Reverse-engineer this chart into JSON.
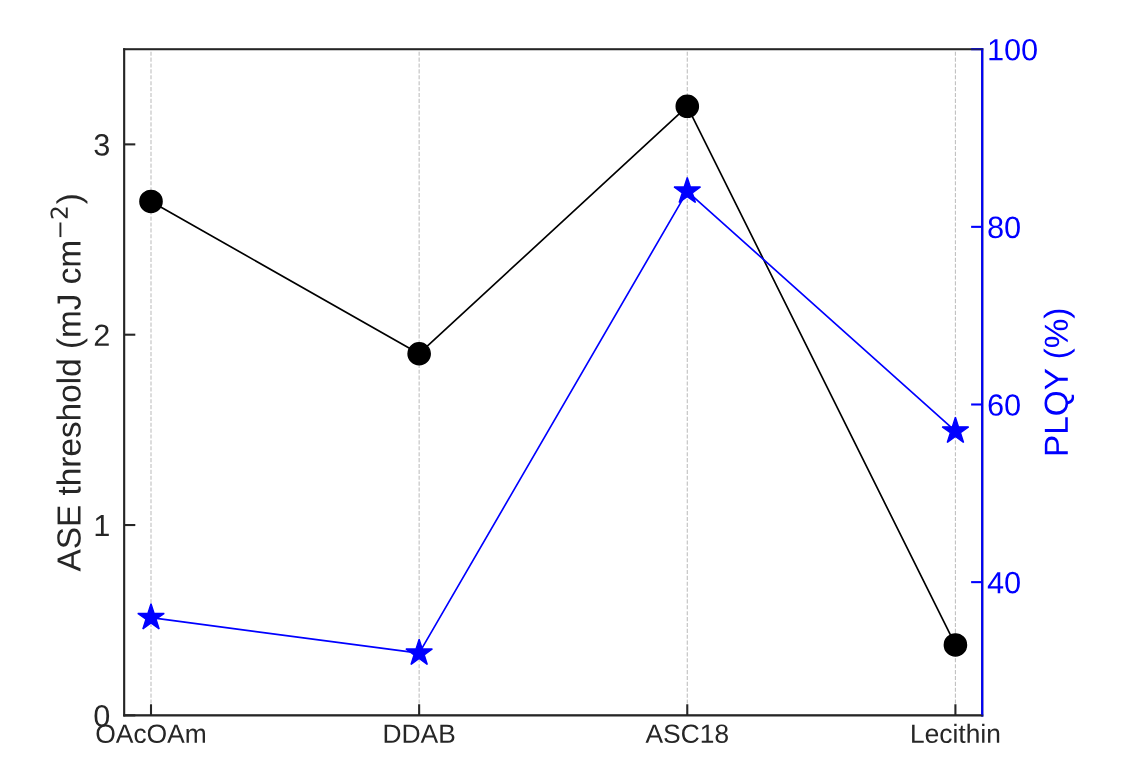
{
  "chart_data": {
    "type": "line",
    "categories": [
      "OAcOAm",
      "DDAB",
      "ASC18",
      "Lecithin"
    ],
    "ylabel": "ASE threshold (mJ cm$^{−2}$)",
    "y2label": "PLQY (%)",
    "ylim": [
      0,
      3.5
    ],
    "yticks": [
      0,
      1,
      2,
      3
    ],
    "y2lim": [
      25,
      100
    ],
    "y2ticks": [
      40,
      60,
      80,
      100
    ],
    "grid": "x",
    "series": [
      {
        "color": "#000000",
        "marker": "circle",
        "values": [
          2.7,
          1.9,
          3.2,
          0.37
        ]
      },
      {
        "color": "#0000ff",
        "marker": "star",
        "axis": "y2",
        "values": [
          36,
          32,
          84,
          57
        ]
      }
    ]
  }
}
